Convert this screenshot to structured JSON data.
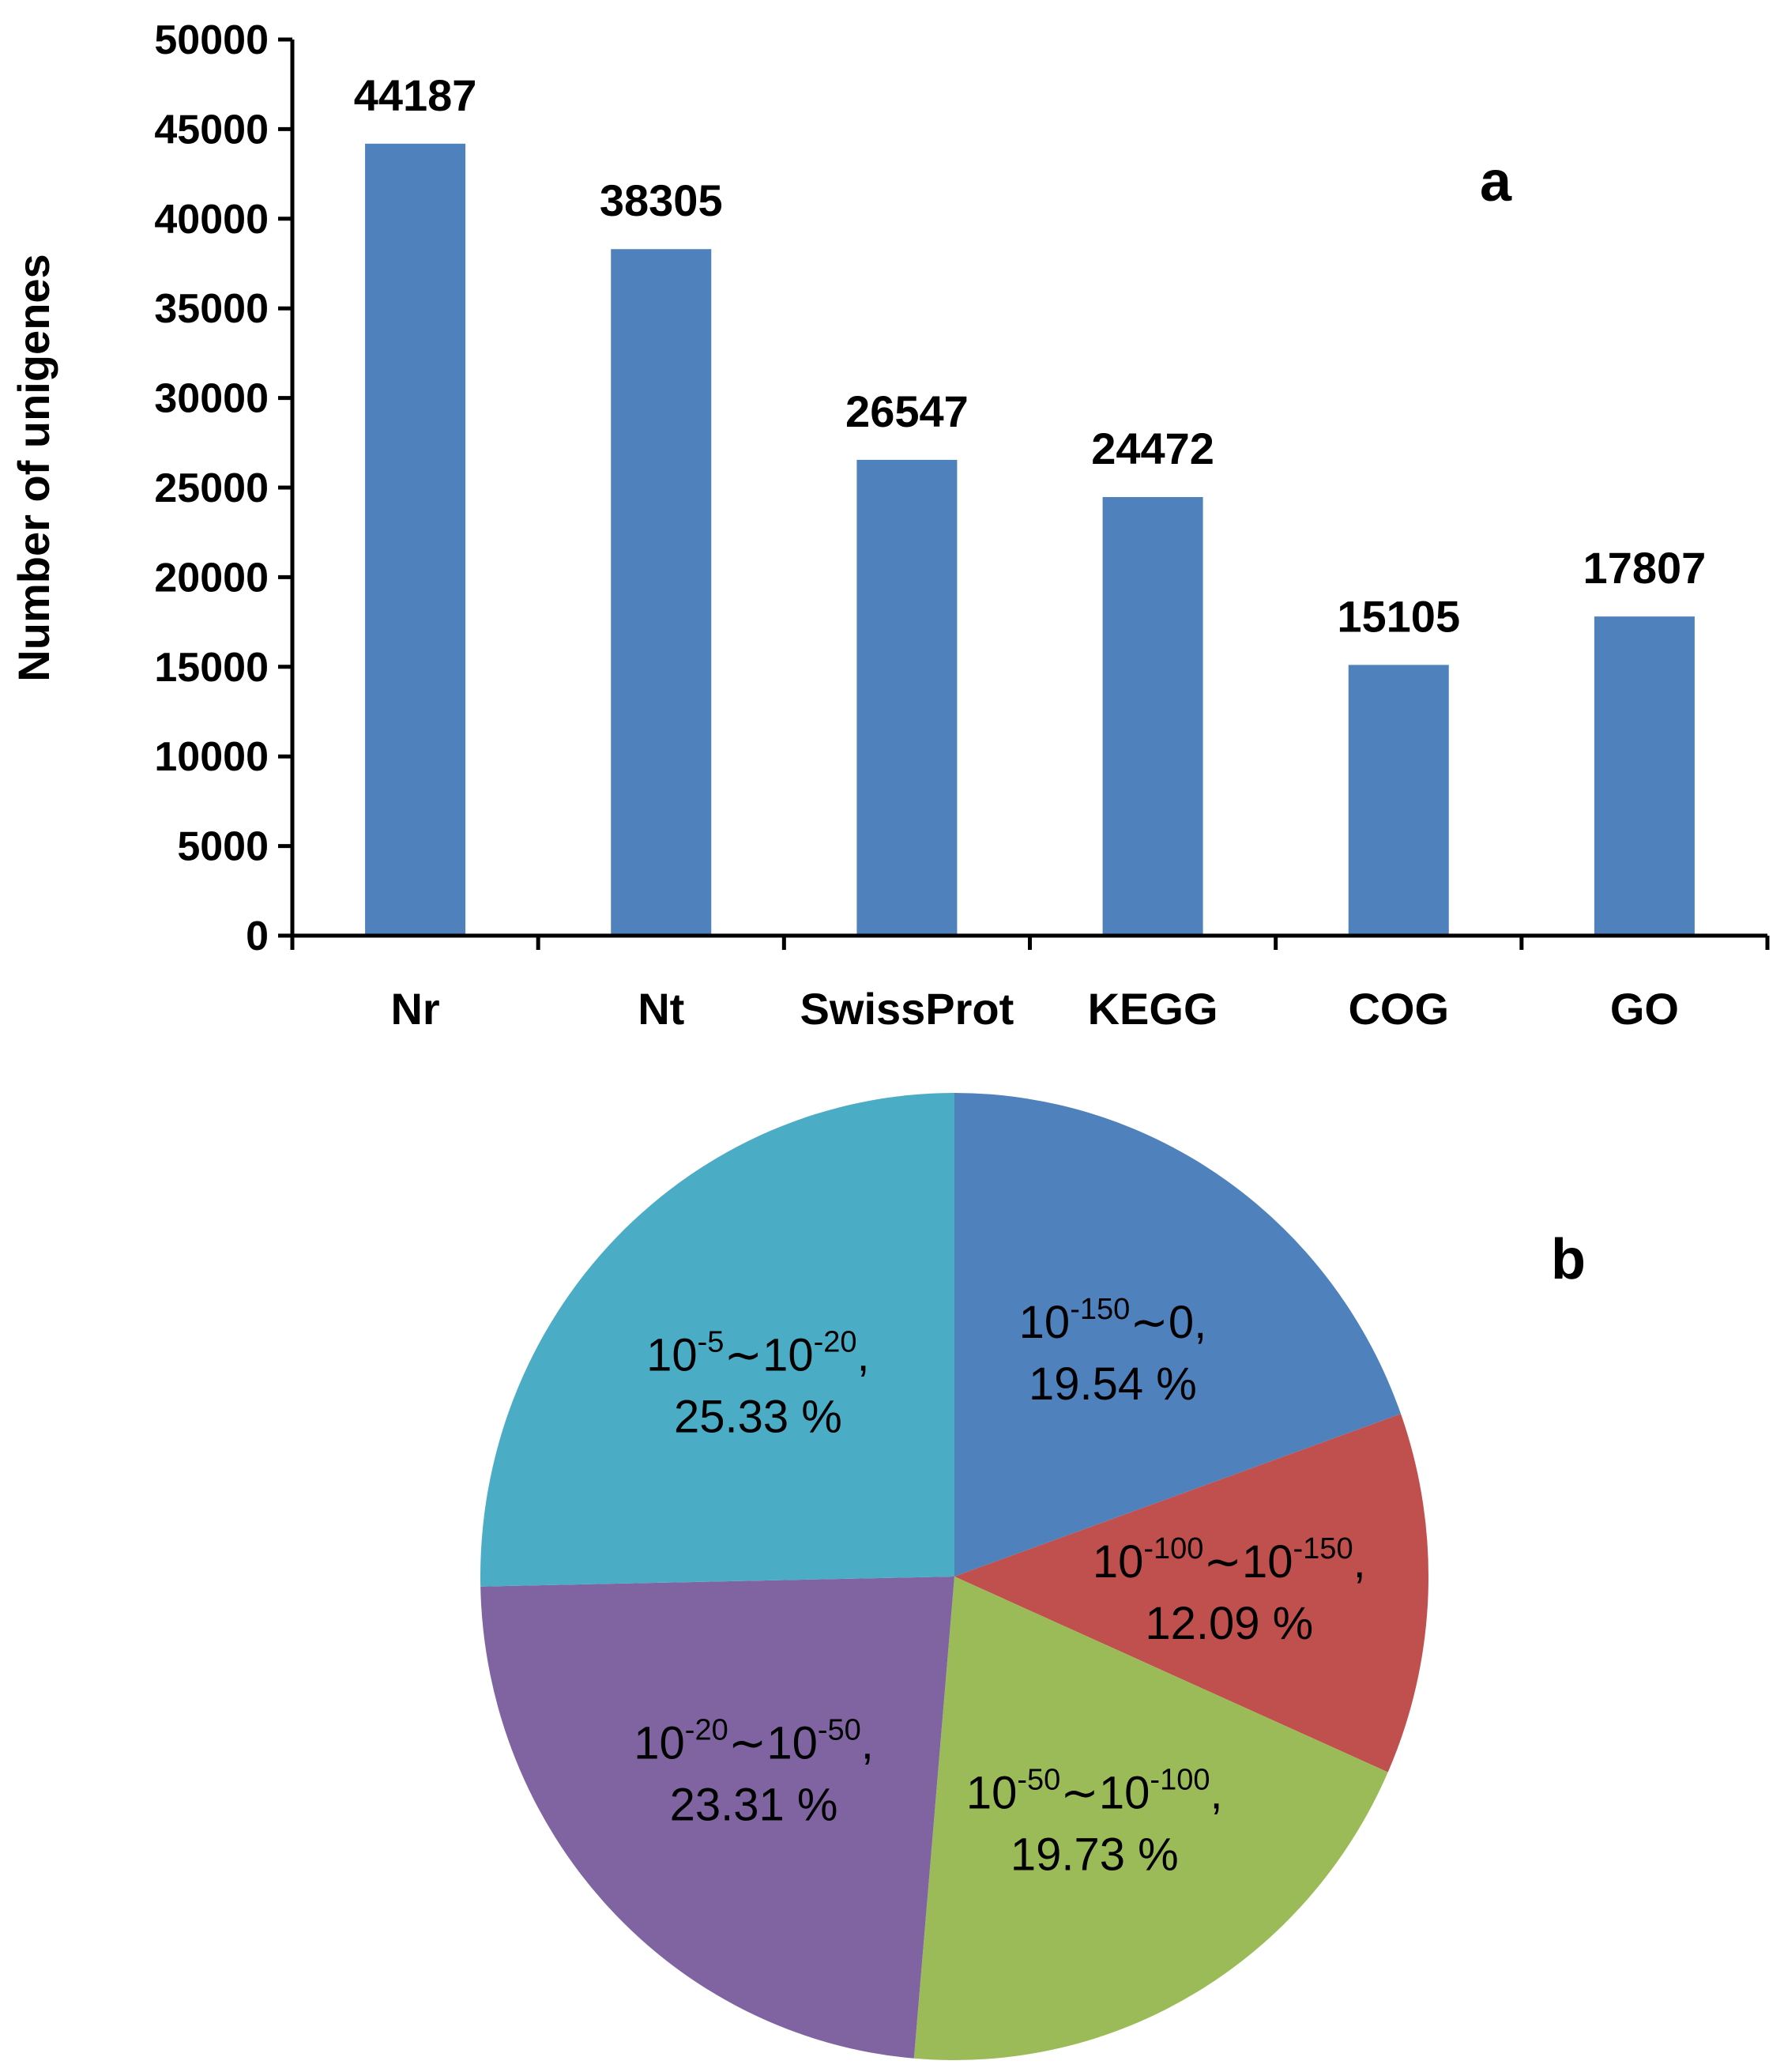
{
  "chart_data": [
    {
      "type": "bar",
      "panel_label": "a",
      "title": "",
      "xlabel": "",
      "ylabel": "Number of unigenes",
      "ylim": [
        0,
        50000
      ],
      "yticks": [
        0,
        5000,
        10000,
        15000,
        20000,
        25000,
        30000,
        35000,
        40000,
        45000,
        50000
      ],
      "grid": false,
      "categories": [
        "Nr",
        "Nt",
        "SwissProt",
        "KEGG",
        "COG",
        "GO"
      ],
      "values": [
        44187,
        38305,
        26547,
        24472,
        15105,
        17807
      ],
      "data_labels": [
        "44187",
        "38305",
        "26547",
        "24472",
        "15105",
        "17807"
      ],
      "color": "#4F81BD"
    },
    {
      "type": "pie",
      "panel_label": "b",
      "start": "12 o'clock, clockwise",
      "slices": [
        {
          "base1": "10",
          "exp1": "-150",
          "sep": "∼",
          "tail": "0,",
          "percent_label": "19.54 %",
          "value": 19.54,
          "color": "#4F81BD"
        },
        {
          "base1": "10",
          "exp1": "-100",
          "sep": "∼",
          "base2": "10",
          "exp2": "-150",
          "tail": ",",
          "percent_label": "12.09 %",
          "value": 12.09,
          "color": "#C0504D"
        },
        {
          "base1": "10",
          "exp1": "-50",
          "sep": "∼",
          "base2": "10",
          "exp2": "-100",
          "tail": ",",
          "percent_label": "19.73 %",
          "value": 19.73,
          "color": "#9BBB59"
        },
        {
          "base1": "10",
          "exp1": "-20",
          "sep": "∼",
          "base2": "10",
          "exp2": "-50",
          "tail": ",",
          "percent_label": "23.31 %",
          "value": 23.31,
          "color": "#8064A2"
        },
        {
          "base1": "10",
          "exp1": "-5",
          "sep": "∼",
          "base2": "10",
          "exp2": "-20",
          "tail": ",",
          "percent_label": "25.33 %",
          "value": 25.33,
          "color": "#4BACC6"
        }
      ]
    }
  ]
}
